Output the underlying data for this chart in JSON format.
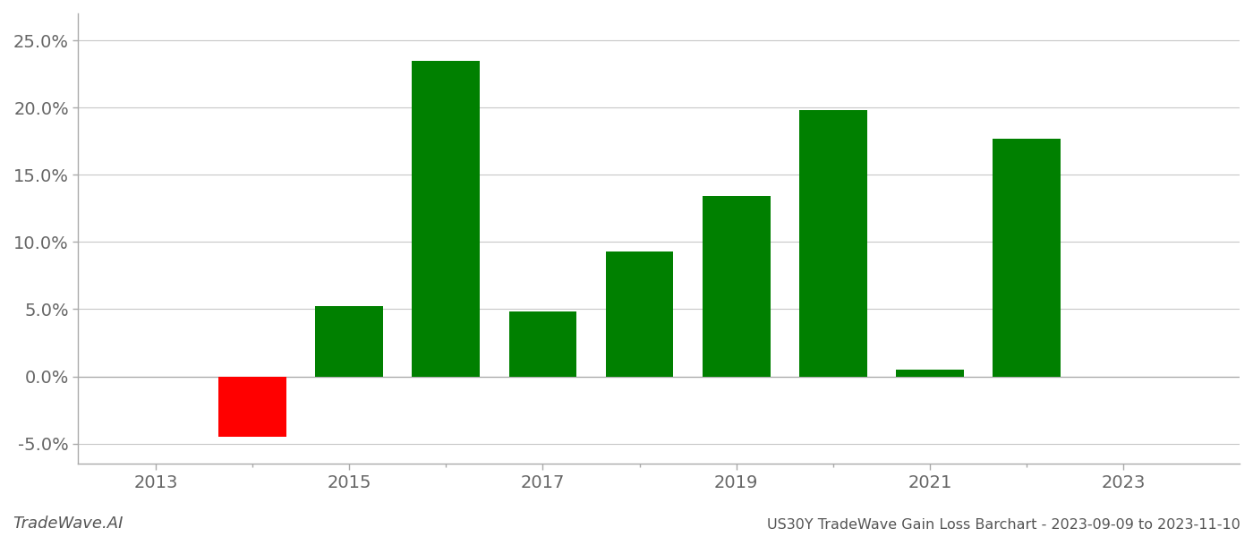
{
  "years": [
    2014,
    2015,
    2016,
    2017,
    2018,
    2019,
    2020,
    2021,
    2022
  ],
  "values": [
    -4.5,
    5.2,
    23.5,
    4.8,
    9.3,
    13.4,
    19.8,
    0.5,
    17.7
  ],
  "ylim": [
    -6.5,
    27.0
  ],
  "yticks": [
    -5.0,
    0.0,
    5.0,
    10.0,
    15.0,
    20.0,
    25.0
  ],
  "xlim_left": 2012.2,
  "xlim_right": 2024.2,
  "xtick_labels": [
    2013,
    2015,
    2017,
    2019,
    2021,
    2023
  ],
  "xtick_minor": [
    2013,
    2014,
    2015,
    2016,
    2017,
    2018,
    2019,
    2020,
    2021,
    2022,
    2023
  ],
  "title": "US30Y TradeWave Gain Loss Barchart - 2023-09-09 to 2023-11-10",
  "watermark": "TradeWave.AI",
  "bar_width": 0.7,
  "bg_color": "#ffffff",
  "grid_color": "#c8c8c8",
  "spine_color": "#aaaaaa",
  "tick_color": "#666666",
  "green_color": "#008000",
  "red_color": "#ff0000",
  "title_fontsize": 11.5,
  "tick_fontsize": 14,
  "watermark_fontsize": 13
}
